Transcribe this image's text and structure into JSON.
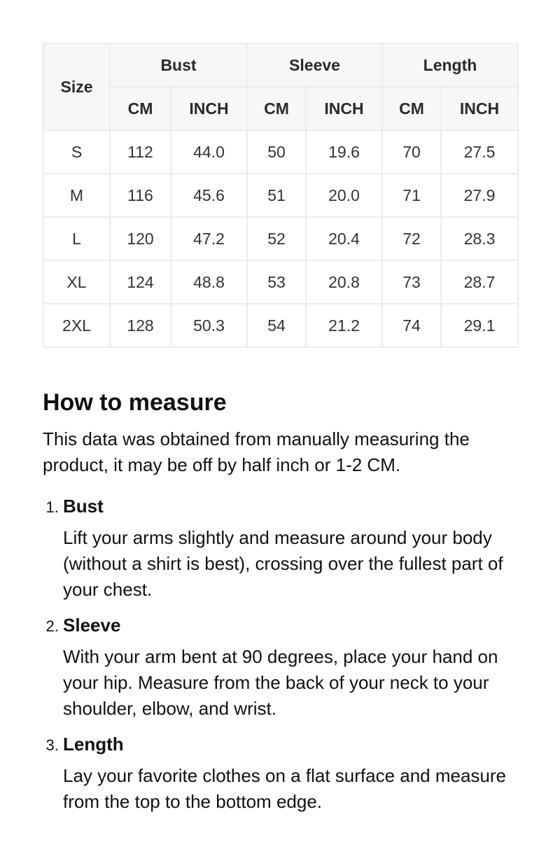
{
  "table": {
    "size_label": "Size",
    "groups": [
      "Bust",
      "Sleeve",
      "Length"
    ],
    "units": [
      "CM",
      "INCH",
      "CM",
      "INCH",
      "CM",
      "INCH"
    ],
    "rows": [
      [
        "S",
        "112",
        "44.0",
        "50",
        "19.6",
        "70",
        "27.5"
      ],
      [
        "M",
        "116",
        "45.6",
        "51",
        "20.0",
        "71",
        "27.9"
      ],
      [
        "L",
        "120",
        "47.2",
        "52",
        "20.4",
        "72",
        "28.3"
      ],
      [
        "XL",
        "124",
        "48.8",
        "53",
        "20.8",
        "73",
        "28.7"
      ],
      [
        "2XL",
        "128",
        "50.3",
        "54",
        "21.2",
        "74",
        "29.1"
      ]
    ]
  },
  "measure": {
    "title": "How to measure",
    "intro": "This data was obtained from manually measuring the product, it may be off by half inch or 1-2 CM.",
    "items": [
      {
        "title": "Bust",
        "text": "Lift your arms slightly and measure around your body (without a shirt is best), crossing over the fullest part of your chest."
      },
      {
        "title": "Sleeve",
        "text": "With your arm bent at 90 degrees, place your hand on your hip. Measure from the back of your neck to your shoulder, elbow, and wrist."
      },
      {
        "title": "Length",
        "text": "Lay your favorite clothes on a flat surface and measure from the top to the bottom edge."
      }
    ]
  }
}
